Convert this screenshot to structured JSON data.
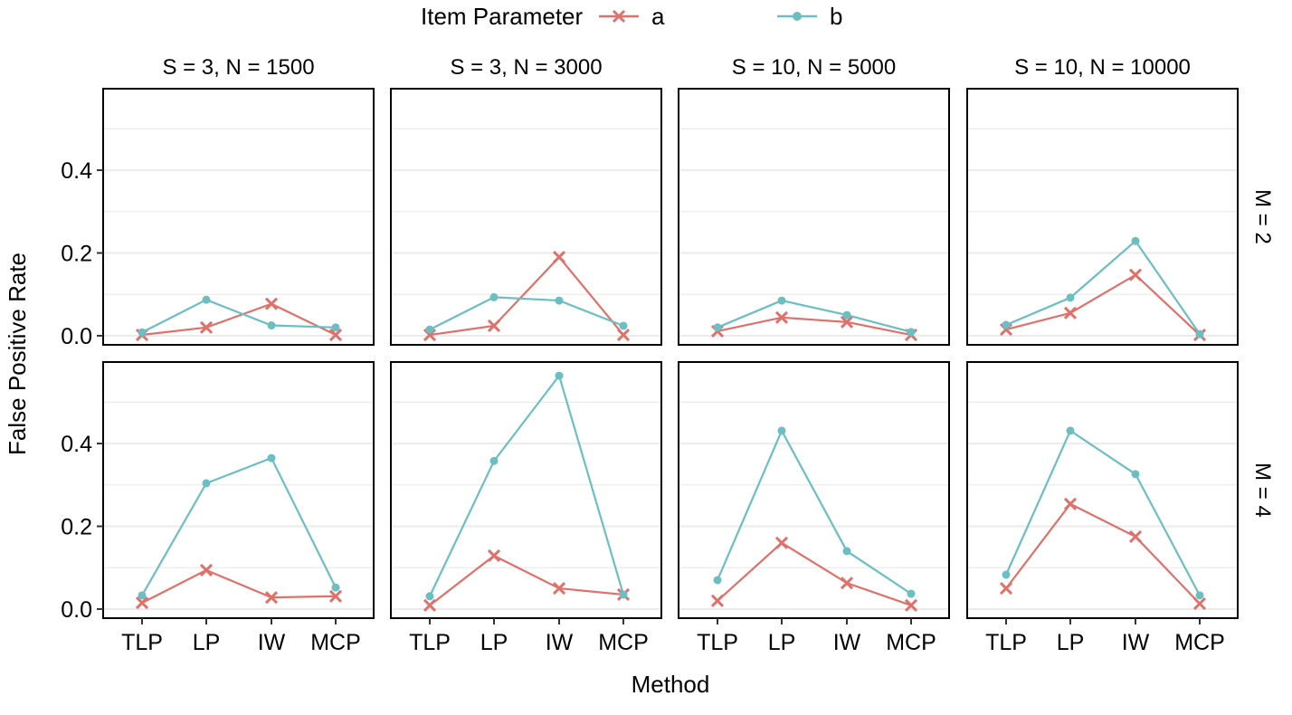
{
  "chart_data": {
    "type": "line",
    "legend": {
      "title": "Item Parameter",
      "placement": "top",
      "entries": [
        "a",
        "b"
      ]
    },
    "xlabel": "Method",
    "ylabel": "False Positive Rate",
    "categories": [
      "TLP",
      "LP",
      "IW",
      "MCP"
    ],
    "ylim": [
      -0.022,
      0.597
    ],
    "yticks": [
      "0.0",
      "0.2",
      "0.4"
    ],
    "ytick_values": [
      0.0,
      0.2,
      0.4
    ],
    "grid": true,
    "colors": {
      "a": "#E0716A",
      "b": "#6BBFC3"
    },
    "markers": {
      "a": "x",
      "b": "circle"
    },
    "columns": [
      "S = 3, N = 1500",
      "S = 3, N = 3000",
      "S = 10, N = 5000",
      "S = 10, N = 10000"
    ],
    "rows": [
      "M = 2",
      "M = 4"
    ],
    "panels": [
      {
        "row": 0,
        "col": 0,
        "series": [
          {
            "name": "a",
            "values": [
              0.002,
              0.02,
              0.077,
              0.002
            ]
          },
          {
            "name": "b",
            "values": [
              0.008,
              0.087,
              0.025,
              0.02
            ]
          }
        ]
      },
      {
        "row": 0,
        "col": 1,
        "series": [
          {
            "name": "a",
            "values": [
              0.002,
              0.024,
              0.19,
              0.002
            ]
          },
          {
            "name": "b",
            "values": [
              0.015,
              0.093,
              0.085,
              0.024
            ]
          }
        ]
      },
      {
        "row": 0,
        "col": 2,
        "series": [
          {
            "name": "a",
            "values": [
              0.011,
              0.044,
              0.033,
              0.002
            ]
          },
          {
            "name": "b",
            "values": [
              0.02,
              0.085,
              0.05,
              0.009
            ]
          }
        ]
      },
      {
        "row": 0,
        "col": 3,
        "series": [
          {
            "name": "a",
            "values": [
              0.015,
              0.055,
              0.147,
              0.002
            ]
          },
          {
            "name": "b",
            "values": [
              0.026,
              0.092,
              0.229,
              0.004
            ]
          }
        ]
      },
      {
        "row": 1,
        "col": 0,
        "series": [
          {
            "name": "a",
            "values": [
              0.015,
              0.094,
              0.028,
              0.031
            ]
          },
          {
            "name": "b",
            "values": [
              0.033,
              0.304,
              0.365,
              0.052
            ]
          }
        ]
      },
      {
        "row": 1,
        "col": 1,
        "series": [
          {
            "name": "a",
            "values": [
              0.009,
              0.129,
              0.05,
              0.035
            ]
          },
          {
            "name": "b",
            "values": [
              0.031,
              0.358,
              0.564,
              0.035
            ]
          }
        ]
      },
      {
        "row": 1,
        "col": 2,
        "series": [
          {
            "name": "a",
            "values": [
              0.02,
              0.16,
              0.063,
              0.009
            ]
          },
          {
            "name": "b",
            "values": [
              0.07,
              0.431,
              0.14,
              0.037
            ]
          }
        ]
      },
      {
        "row": 1,
        "col": 3,
        "series": [
          {
            "name": "a",
            "values": [
              0.05,
              0.254,
              0.175,
              0.013
            ]
          },
          {
            "name": "b",
            "values": [
              0.083,
              0.431,
              0.326,
              0.033
            ]
          }
        ]
      }
    ]
  }
}
